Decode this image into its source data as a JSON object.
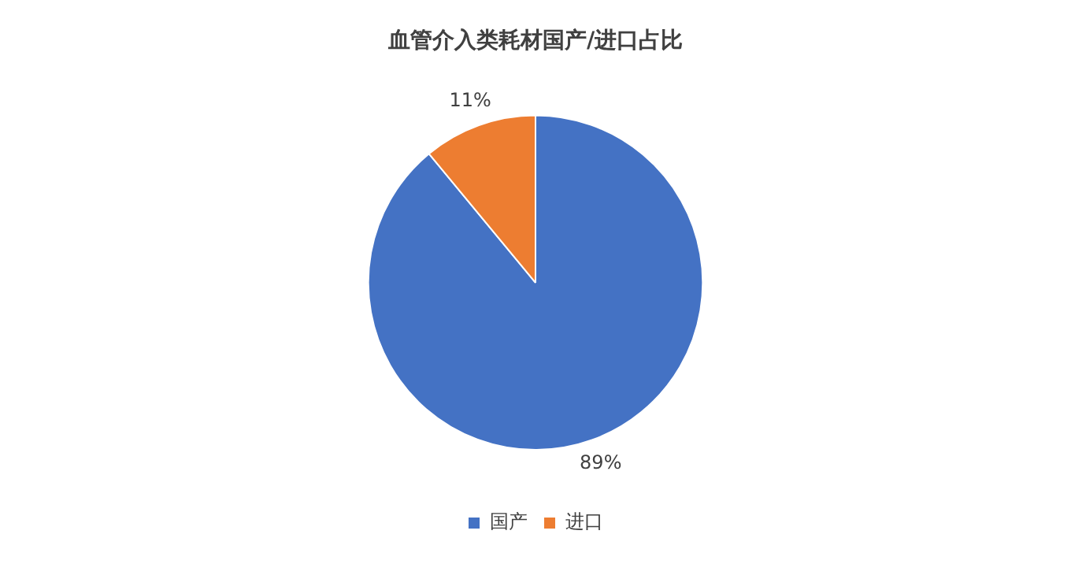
{
  "chart_data": {
    "type": "pie",
    "title": "血管介入类耗材国产/进口占比",
    "categories": [
      "国产",
      "进口"
    ],
    "values": [
      89,
      11
    ],
    "colors": [
      "#4472c4",
      "#ed7d31"
    ],
    "value_labels": [
      "89%",
      "11%"
    ],
    "legend": "bottom"
  }
}
